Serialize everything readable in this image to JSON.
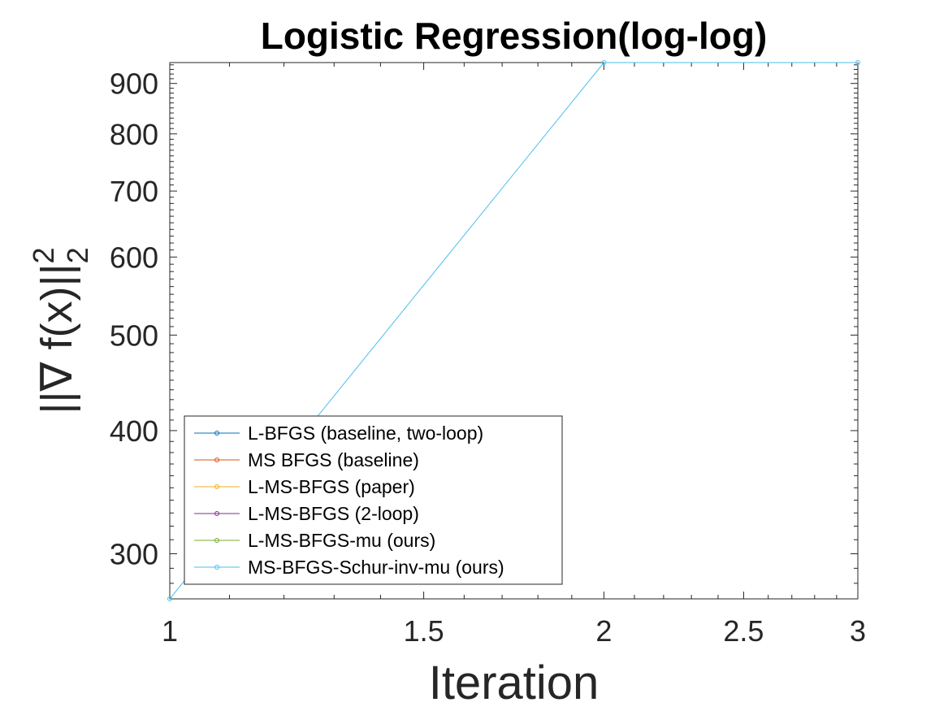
{
  "chart_data": {
    "type": "line",
    "title": "Logistic Regression(log-log)",
    "xlabel": "Iteration",
    "ylabel_main": "||∇ f(x)||",
    "ylabel_sup": "2",
    "ylabel_sub": "2",
    "xscale": "log",
    "yscale": "log",
    "xlim": [
      1,
      3
    ],
    "ylim": [
      270,
      945
    ],
    "xticks": [
      1,
      1.5,
      2,
      2.5,
      3
    ],
    "xtick_labels": [
      "1",
      "1.5",
      "2",
      "2.5",
      "3"
    ],
    "yticks": [
      300,
      400,
      500,
      600,
      700,
      800,
      900
    ],
    "ytick_labels": [
      "300",
      "400",
      "500",
      "600",
      "700",
      "800",
      "900"
    ],
    "grid": false,
    "legend_position": "bottom-left",
    "series": [
      {
        "name": "L-BFGS (baseline, two-loop)",
        "color": "#0072BD",
        "x": [],
        "y": []
      },
      {
        "name": "MS BFGS (baseline)",
        "color": "#D95319",
        "x": [],
        "y": []
      },
      {
        "name": "L-MS-BFGS (paper)",
        "color": "#EDB120",
        "x": [],
        "y": []
      },
      {
        "name": "L-MS-BFGS (2-loop)",
        "color": "#7E2F8E",
        "x": [],
        "y": []
      },
      {
        "name": "L-MS-BFGS-mu (ours)",
        "color": "#77AC30",
        "x": [],
        "y": []
      },
      {
        "name": "MS-BFGS-Schur-inv-mu (ours)",
        "color": "#4DBEEE",
        "x": [
          1,
          2,
          3
        ],
        "y": [
          270,
          945,
          945
        ]
      }
    ]
  }
}
